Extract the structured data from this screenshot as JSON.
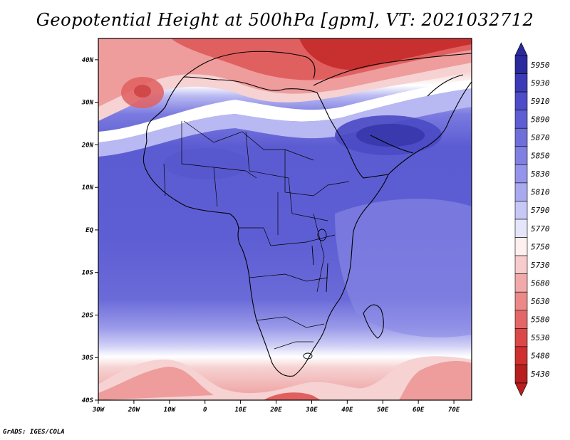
{
  "title": "Geopotential Height at 500hPa [gpm], VT: 2021032712",
  "credit": "GrADS: IGES/COLA",
  "axes": {
    "lon_labels": [
      "30W",
      "20W",
      "10W",
      "0",
      "10E",
      "20E",
      "30E",
      "40E",
      "50E",
      "60E",
      "70E"
    ],
    "lat_labels": [
      "40N",
      "30N",
      "20N",
      "10N",
      "EQ",
      "10S",
      "20S",
      "30S",
      "40S"
    ],
    "lon_range": [
      -30,
      75
    ],
    "lat_range": [
      -40,
      45
    ]
  },
  "colorbar": {
    "levels": [
      "5950",
      "5930",
      "5910",
      "5890",
      "5870",
      "5850",
      "5830",
      "5810",
      "5790",
      "5770",
      "5750",
      "5730",
      "5680",
      "5630",
      "5580",
      "5530",
      "5480",
      "5430"
    ],
    "colors": [
      "#2a2a9e",
      "#3b3bb8",
      "#4d4dc9",
      "#5e5ed4",
      "#6f6fdc",
      "#8080e3",
      "#9494ea",
      "#a9a9f0",
      "#c8c8f6",
      "#e6e6fb",
      "#fff0f0",
      "#f8cccc",
      "#f2a9a9",
      "#ec8888",
      "#e46767",
      "#dc4848",
      "#cf2f2f",
      "#b81e1e"
    ]
  },
  "field_colors": {
    "deep_blue": "#3a3aae",
    "blue": "#5c5cd2",
    "mid_blue": "#7070dc",
    "light_blue": "#8a8ae6",
    "pale_blue": "#b8b8f2",
    "white": "#ffffff",
    "pale_red": "#f6d2d2",
    "light_red": "#ee9c9c",
    "red": "#e06060",
    "deep_red": "#c83030"
  }
}
